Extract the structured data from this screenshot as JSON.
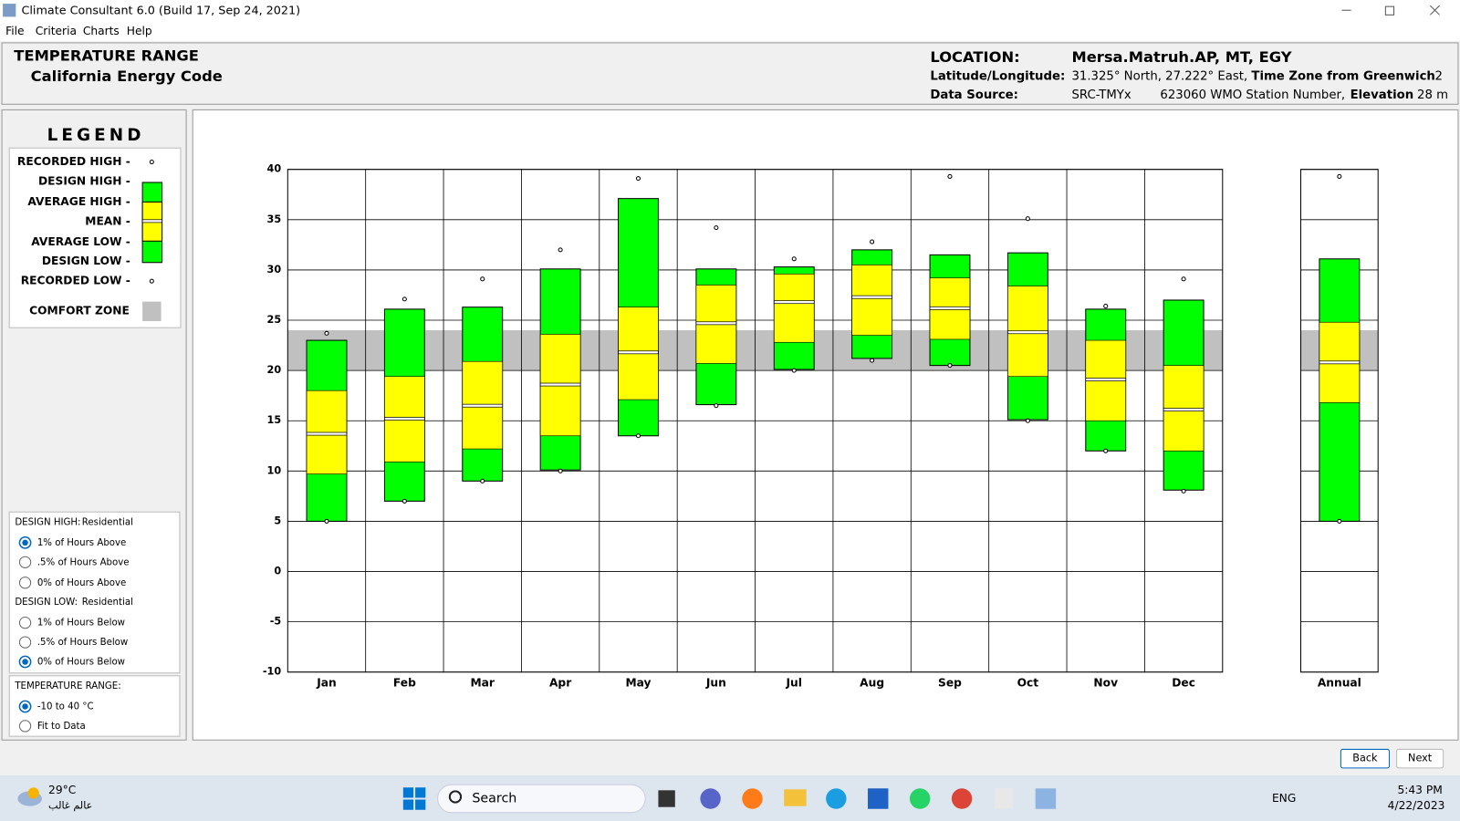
{
  "window": {
    "title": "Climate Consultant 6.0 (Build 17, Sep 24, 2021)",
    "menu": [
      "File",
      "Criteria",
      "Charts",
      "Help"
    ]
  },
  "header": {
    "title": "TEMPERATURE RANGE",
    "subtitle": "California Energy Code",
    "location_label": "LOCATION:",
    "location": "Mersa.Matruh.AP, MT, EGY",
    "latlon_label": "Latitude/Longitude:",
    "latlon": "31.325° North, 27.222° East,",
    "tz_label": "Time Zone from Greenwich",
    "tz": "2",
    "source_label": "Data Source:",
    "source": "SRC-TMYx",
    "station": "623060 WMO Station Number,",
    "elevation_label": "Elevation",
    "elevation": "28 m"
  },
  "options": {
    "design_high": {
      "label": "DESIGN HIGH:",
      "type": "Residential",
      "choices": [
        "1% of Hours Above",
        ".5% of Hours Above",
        "0% of Hours Above"
      ],
      "selected": 0
    },
    "design_low": {
      "label": "DESIGN LOW:",
      "type": "Residential",
      "choices": [
        "1% of Hours Below",
        ".5% of Hours Below",
        "0% of Hours Below"
      ],
      "selected": 2
    },
    "temperature_range": {
      "label": "TEMPERATURE RANGE:",
      "choices": [
        "-10 to 40 °C",
        "Fit to Data"
      ],
      "selected": 0
    }
  },
  "buttons": [
    "Back",
    "Next"
  ],
  "taskbar": {
    "temperature": "29°C",
    "weather_text": "عالم غالب",
    "search": "Search",
    "language": "ENG",
    "time": "5:43 PM",
    "date": "4/22/2023"
  },
  "chart_data": {
    "type": "range",
    "legend_title": "LEGEND",
    "categories": [
      "Jan",
      "Feb",
      "Mar",
      "Apr",
      "May",
      "Jun",
      "Jul",
      "Aug",
      "Sep",
      "Oct",
      "Nov",
      "Dec",
      "Annual"
    ],
    "series": [
      {
        "name": "RECORDED HIGH -",
        "color": "#ffffff",
        "values": [
          23.7,
          27.1,
          29.1,
          32.0,
          39.1,
          34.2,
          31.1,
          32.8,
          39.3,
          35.1,
          26.4,
          29.1,
          39.3
        ]
      },
      {
        "name": "DESIGN HIGH -",
        "color": "#00ff00",
        "values": [
          23.0,
          26.1,
          26.3,
          30.1,
          37.1,
          30.1,
          30.3,
          32.0,
          31.5,
          31.7,
          26.1,
          27.0,
          31.1
        ]
      },
      {
        "name": "AVERAGE HIGH -",
        "color": "#ffff00",
        "values": [
          18.0,
          19.4,
          20.9,
          23.6,
          26.3,
          28.5,
          29.6,
          30.5,
          29.2,
          28.4,
          23.0,
          20.5,
          24.8
        ]
      },
      {
        "name": "MEAN -",
        "color": "#ffffff",
        "values": [
          13.7,
          15.2,
          16.5,
          18.6,
          21.8,
          24.7,
          26.8,
          27.3,
          26.2,
          23.8,
          19.1,
          16.1,
          20.8
        ]
      },
      {
        "name": "AVERAGE LOW -",
        "color": "#ffff00",
        "values": [
          9.7,
          10.9,
          12.2,
          13.5,
          17.1,
          20.7,
          22.8,
          23.5,
          23.1,
          19.4,
          15.0,
          12.0,
          16.8
        ]
      },
      {
        "name": "DESIGN LOW -",
        "color": "#00ff00",
        "values": [
          5.0,
          7.0,
          9.0,
          10.1,
          13.5,
          16.6,
          20.1,
          21.2,
          20.5,
          15.1,
          12.0,
          8.1,
          5.0
        ]
      },
      {
        "name": "RECORDED LOW -",
        "color": "#ffffff",
        "values": [
          5.0,
          7.0,
          9.0,
          10.0,
          13.5,
          16.5,
          20.0,
          21.0,
          20.5,
          15.0,
          12.0,
          8.0,
          5.0
        ]
      }
    ],
    "comfort_zone": {
      "name": "COMFORT ZONE",
      "range": [
        20,
        24
      ],
      "color": "#c0c0c0"
    },
    "ylim": [
      -10,
      40
    ],
    "yticks": [
      -10,
      -5,
      0,
      5,
      10,
      15,
      20,
      25,
      30,
      35,
      40
    ],
    "grid": true
  }
}
